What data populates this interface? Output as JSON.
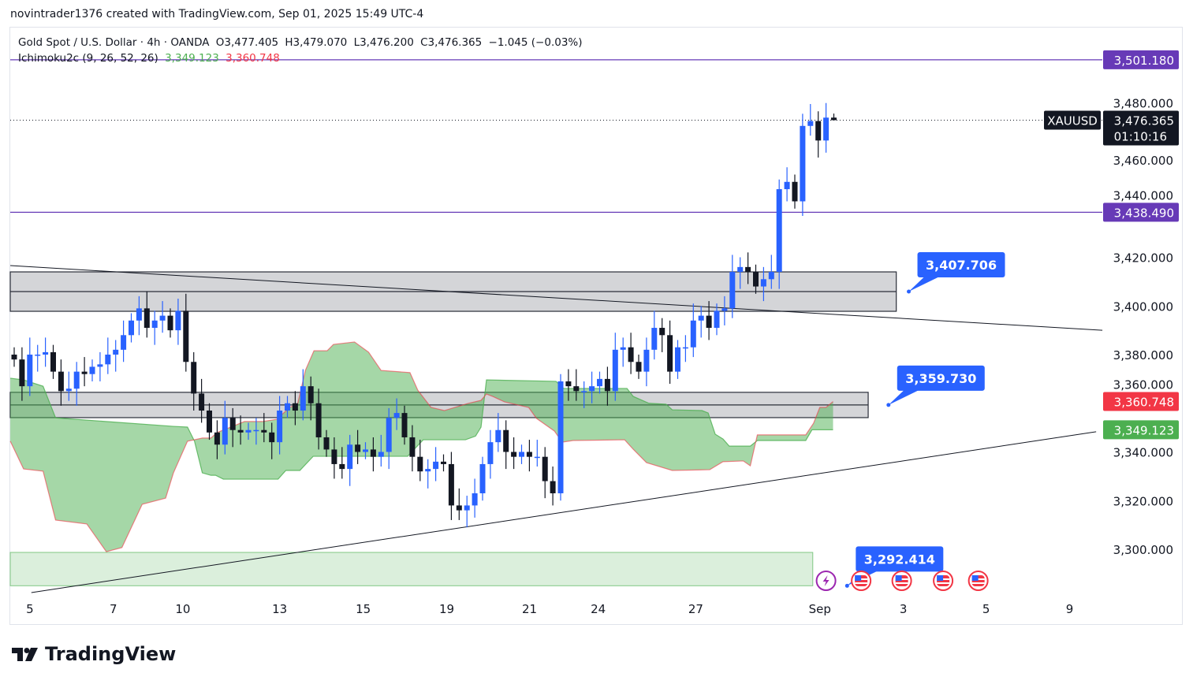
{
  "credit": "novintrader1376 created with TradingView.com, Sep 01, 2025 15:49 UTC-4",
  "legend": {
    "symbol_line": "Gold Spot / U.S. Dollar · 4h · OANDA",
    "open": "O3,477.405",
    "high": "H3,479.070",
    "low": "L3,476.200",
    "close": "C3,476.365",
    "change": "−1.045 (−0.03%)",
    "indicator": "Ichimoku2c (9, 26, 52, 26)",
    "ind_value_a": "3,349.123",
    "ind_value_b": "3,360.748"
  },
  "logo_text": "TradingView",
  "colors": {
    "up": "#2962ff",
    "down": "#131722",
    "purple": "#673ab7",
    "cloud_a": "#4caf50",
    "cloud_b": "#f23645",
    "callout": "#2962ff"
  },
  "chart_data": {
    "type": "candlestick",
    "title": "Gold Spot / U.S. Dollar · 4h · OANDA",
    "symbol": "XAUUSD",
    "ylim": [
      3280,
      3510
    ],
    "y_ticks": [
      {
        "v": 3480,
        "label": "3,480.000"
      },
      {
        "v": 3460,
        "label": "3,460.000"
      },
      {
        "v": 3440,
        "label": "3,440.000"
      },
      {
        "v": 3420,
        "label": "3,420.000"
      },
      {
        "v": 3400,
        "label": "3,400.000"
      },
      {
        "v": 3380,
        "label": "3,380.000"
      },
      {
        "v": 3360,
        "label": "3,360.000"
      },
      {
        "v": 3340,
        "label": "3,340.000"
      },
      {
        "v": 3320,
        "label": "3,320.000"
      },
      {
        "v": 3300,
        "label": "3,300.000"
      }
    ],
    "x_ticks": [
      {
        "bar": 1,
        "label": "5"
      },
      {
        "bar": 11.7,
        "label": "7"
      },
      {
        "bar": 20.6,
        "label": "10"
      },
      {
        "bar": 33,
        "label": "13"
      },
      {
        "bar": 43.7,
        "label": "15"
      },
      {
        "bar": 54.4,
        "label": "19"
      },
      {
        "bar": 65,
        "label": "21"
      },
      {
        "bar": 73.8,
        "label": "24"
      },
      {
        "bar": 86.3,
        "label": "27"
      },
      {
        "bar": 102.2,
        "label": "Sep"
      },
      {
        "bar": 112.9,
        "label": "3"
      },
      {
        "bar": 123.5,
        "label": "5"
      },
      {
        "bar": 134.2,
        "label": "9"
      }
    ],
    "first_open": 3380,
    "closes": [
      3378,
      3367,
      3380,
      3380,
      3381,
      3373,
      3365,
      3366,
      3373,
      3372,
      3375,
      3376,
      3380,
      3382,
      3388,
      3394,
      3399,
      3391,
      3394,
      3396,
      3390,
      3398,
      3377,
      3364,
      3357,
      3348,
      3343,
      3354,
      3349,
      3348,
      3349,
      3349,
      3348,
      3344,
      3357,
      3360,
      3357,
      3367,
      3360,
      3346,
      3341,
      3335,
      3333,
      3343,
      3340,
      3341,
      3338,
      3340,
      3354,
      3356,
      3346,
      3338,
      3332,
      3333,
      3336,
      3335,
      3318,
      3316,
      3318,
      3323,
      3335,
      3344,
      3349,
      3340,
      3338,
      3340,
      3338,
      3338,
      3328,
      3323,
      3369,
      3367,
      3365,
      3365,
      3367,
      3370,
      3365,
      3382,
      3383,
      3377,
      3373,
      3382,
      3391,
      3388,
      3373,
      3383,
      3383,
      3394,
      3396,
      3391,
      3398,
      3399,
      3414,
      3416,
      3414,
      3408,
      3411,
      3414,
      3448,
      3451,
      3443,
      3474,
      3476,
      3468,
      3477.405,
      3476.365
    ],
    "last_bar": {
      "open": 3477.405,
      "high": 3479.07,
      "low": 3476.2,
      "close": 3476.365
    },
    "ichimoku_span_a": [
      [
        -0.5,
        3370.3
      ],
      [
        1.2,
        3369.6
      ],
      [
        3.7,
        3367
      ],
      [
        5.3,
        3354
      ],
      [
        20.4,
        3350.5
      ],
      [
        22.2,
        3350.2
      ],
      [
        23.1,
        3344.4
      ],
      [
        24.1,
        3331.4
      ],
      [
        25.2,
        3330.4
      ],
      [
        25.8,
        3330.4
      ],
      [
        26.8,
        3328.8
      ],
      [
        33.8,
        3328.8
      ],
      [
        34.8,
        3332.4
      ],
      [
        36.6,
        3332.4
      ],
      [
        38.3,
        3338.2
      ],
      [
        50.4,
        3338.2
      ],
      [
        52.4,
        3345
      ],
      [
        57.8,
        3345
      ],
      [
        59.1,
        3346.5
      ],
      [
        59.8,
        3350.2
      ],
      [
        60.5,
        3369.6
      ],
      [
        69.4,
        3369
      ],
      [
        70.4,
        3366.1
      ],
      [
        78.5,
        3366.1
      ],
      [
        79.3,
        3362.8
      ],
      [
        81.3,
        3360
      ],
      [
        83.5,
        3359.6
      ],
      [
        84.3,
        3357.3
      ],
      [
        88.1,
        3357
      ],
      [
        88.9,
        3356
      ],
      [
        89.8,
        3347.3
      ],
      [
        90.8,
        3345.3
      ],
      [
        91.6,
        3342.4
      ],
      [
        94.3,
        3342.4
      ],
      [
        95.2,
        3344.7
      ],
      [
        101.4,
        3344.7
      ],
      [
        102.2,
        3349.1
      ],
      [
        104.9,
        3349.1
      ]
    ],
    "ichimoku_span_b": [
      [
        -0.5,
        3344.4
      ],
      [
        1.2,
        3333
      ],
      [
        3.7,
        3332.1
      ],
      [
        5.3,
        3312
      ],
      [
        9.3,
        3310.4
      ],
      [
        11.8,
        3299
      ],
      [
        13.8,
        3300.7
      ],
      [
        16.4,
        3318.5
      ],
      [
        19.4,
        3321
      ],
      [
        20.4,
        3331.4
      ],
      [
        22.2,
        3344.4
      ],
      [
        24.1,
        3345.7
      ],
      [
        25.2,
        3345.7
      ],
      [
        26,
        3348
      ],
      [
        28.2,
        3350.8
      ],
      [
        29.5,
        3352.5
      ],
      [
        31.8,
        3352.5
      ],
      [
        33.8,
        3353.5
      ],
      [
        34.2,
        3355.1
      ],
      [
        35.3,
        3358.3
      ],
      [
        36.3,
        3359.6
      ],
      [
        37.3,
        3373.5
      ],
      [
        38.4,
        3381.6
      ],
      [
        40.1,
        3381.6
      ],
      [
        40.9,
        3384.2
      ],
      [
        43.6,
        3385.2
      ],
      [
        45.4,
        3381
      ],
      [
        47,
        3373.5
      ],
      [
        50.7,
        3372.6
      ],
      [
        51.7,
        3365.4
      ],
      [
        53.4,
        3358.3
      ],
      [
        55.1,
        3357
      ],
      [
        58.1,
        3359.9
      ],
      [
        59.8,
        3361.2
      ],
      [
        60.5,
        3363.8
      ],
      [
        61.3,
        3362.8
      ],
      [
        62.8,
        3360.6
      ],
      [
        65.9,
        3358.3
      ],
      [
        66.9,
        3353.8
      ],
      [
        69.2,
        3348.6
      ],
      [
        70.2,
        3344
      ],
      [
        71.6,
        3344.7
      ],
      [
        78.2,
        3345
      ],
      [
        79.3,
        3341.1
      ],
      [
        81,
        3335.6
      ],
      [
        84.3,
        3332.4
      ],
      [
        89.1,
        3332.7
      ],
      [
        90.8,
        3336
      ],
      [
        93.4,
        3336.3
      ],
      [
        94.3,
        3334.3
      ],
      [
        95.2,
        3347
      ],
      [
        101.4,
        3347
      ],
      [
        102.4,
        3351.8
      ],
      [
        103.2,
        3358.3
      ],
      [
        104,
        3358.3
      ],
      [
        104.9,
        3360.7
      ]
    ],
    "horizontal_lines": [
      {
        "price": 3501.18,
        "label": "3,501.180"
      },
      {
        "price": 3438.49,
        "label": "3,438.490"
      }
    ],
    "zones": [
      {
        "top": 3414.0,
        "bottom": 3397.8,
        "mid": 3405.9,
        "end_bar": 113,
        "kind": "gray"
      },
      {
        "top": 3364.5,
        "bottom": 3354.1,
        "mid": 3359.3,
        "end_bar": 109.4,
        "kind": "gray"
      },
      {
        "top": 3298.7,
        "bottom": 3285.0,
        "end_bar": 102.3,
        "kind": "green"
      }
    ],
    "trendlines": [
      {
        "from": [
          -0.5,
          3416.6
        ],
        "to": [
          139.4,
          3390.0
        ]
      },
      {
        "from": [
          2.2,
          3282.2
        ],
        "to": [
          138.6,
          3348.3
        ]
      }
    ],
    "callouts": [
      {
        "label": "3,407.706",
        "bar": 114.6,
        "price": 3405.9
      },
      {
        "label": "3,359.730",
        "bar": 112,
        "price": 3359.3
      },
      {
        "label": "3,292.414",
        "bar": 106.7,
        "price": 3285.0
      }
    ],
    "price_label": {
      "symbol": "XAUUSD",
      "price": "3,476.365",
      "countdown": "01:10:16",
      "value": 3476.365
    },
    "indicator_labels": [
      {
        "label": "3,360.748",
        "price": 3360.748,
        "color": "#f23645"
      },
      {
        "label": "3,349.123",
        "price": 3349.123,
        "color": "#4caf50"
      }
    ],
    "events": [
      {
        "kind": "lightning",
        "bar": 104
      },
      {
        "kind": "us-flag",
        "bar": 108.5
      },
      {
        "kind": "us-flag",
        "bar": 113.7
      },
      {
        "kind": "us-flag",
        "bar": 119
      },
      {
        "kind": "us-flag",
        "bar": 123.5
      }
    ]
  }
}
